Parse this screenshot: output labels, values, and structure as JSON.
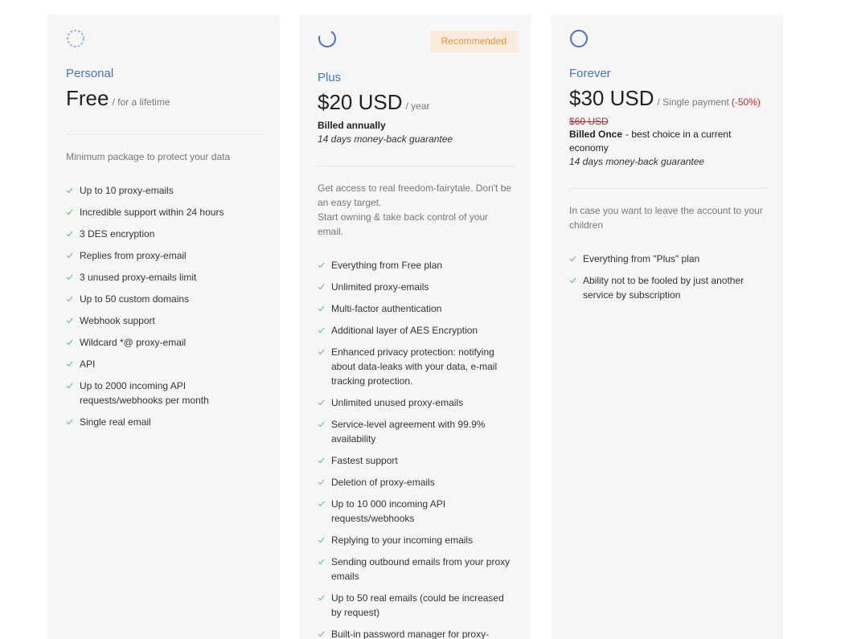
{
  "plans": [
    {
      "name": "Personal",
      "price": "Free",
      "period": "/ for a lifetime",
      "description": [
        "Minimum package to protect your data"
      ],
      "features": [
        "Up to 10 proxy-emails",
        "Incredible support within 24 hours",
        "3 DES encryption",
        "Replies from proxy-email",
        "3 unused proxy-emails limit",
        "Up to 50 custom domains",
        "Webhook support",
        "Wildcard *@ proxy-email",
        "API",
        "Up to 2000 incoming API requests/webhooks per month",
        "Single real email"
      ]
    },
    {
      "badge": "Recommended",
      "name": "Plus",
      "price": "$20 USD",
      "period": "/ year",
      "billing": "Billed annually",
      "guarantee": "14 days money-back guarantee",
      "description": [
        "Get access to real freedom-fairytale. Don't be an easy target.",
        "Start owning & take back control of your email."
      ],
      "features": [
        "Everything from Free plan",
        "Unlimited proxy-emails",
        "Multi-factor authentication",
        "Additional layer of AES Encryption",
        "Enhanced privacy protection: notifying about data-leaks with your data, e-mail tracking protection.",
        "Unlimited unused proxy-emails",
        "Service-level agreement with 99.9% availability",
        "Fastest support",
        "Deletion of proxy-emails",
        "Up to 10 000 incoming API requests/webhooks",
        "Replying to your incoming emails",
        "Sending outbound emails from your proxy emails",
        "Up to 50 real emails (could be increased by request)",
        "Built-in password manager for proxy-emails"
      ]
    },
    {
      "name": "Forever",
      "price": "$30 USD",
      "period": "/ Single payment",
      "discount": "(-50%)",
      "old_price": "$60 USD",
      "billing": "Billed Once",
      "billing_note": "- best choice in a current economy",
      "guarantee": "14 days money-back guarantee",
      "description": [
        "In case you want to leave the account to your children"
      ],
      "features": [
        "Everything from \"Plus\" plan",
        "Ability not to be fooled by just another service by subscription"
      ]
    }
  ]
}
